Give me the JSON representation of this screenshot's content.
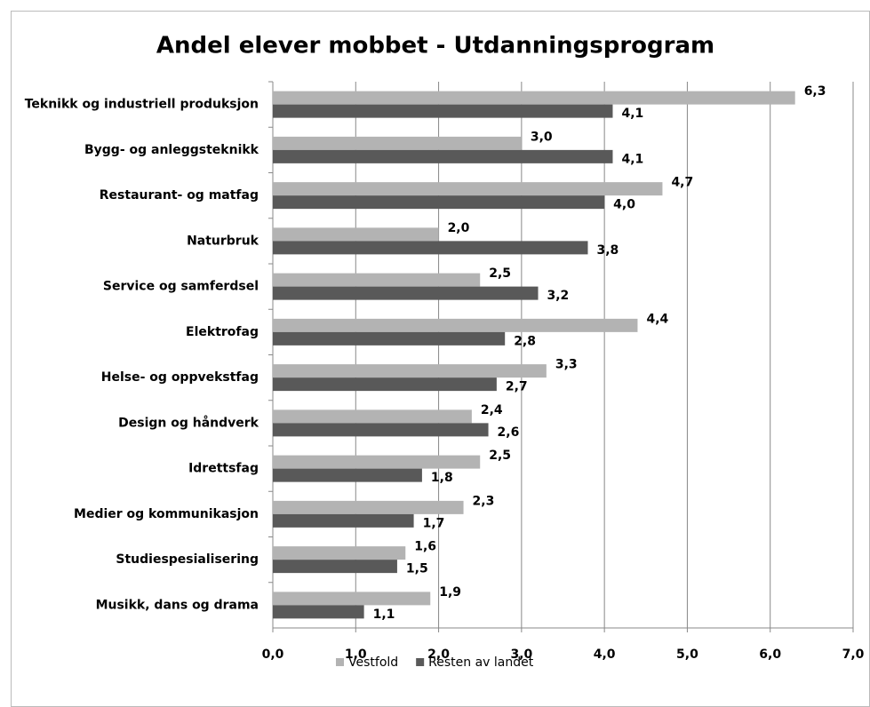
{
  "chart_data": {
    "type": "hbar",
    "title": "Andel  elever mobbet  - Utdanningsprogram",
    "categories": [
      "Teknikk og industriell produksjon",
      "Bygg- og anleggsteknikk",
      "Restaurant- og matfag",
      "Naturbruk",
      "Service og samferdsel",
      "Elektrofag",
      "Helse- og oppvekstfag",
      "Design og håndverk",
      "Idrettsfag",
      "Medier og kommunikasjon",
      "Studiespesialisering",
      "Musikk, dans og drama"
    ],
    "series": [
      {
        "name": "Vestfold",
        "color": "#b3b3b3",
        "values": [
          6.3,
          3.0,
          4.7,
          2.0,
          2.5,
          4.4,
          3.3,
          2.4,
          2.5,
          2.3,
          1.6,
          1.9
        ],
        "value_labels": [
          "6,3",
          "3,0",
          "4,7",
          "2,0",
          "2,5",
          "4,4",
          "3,3",
          "2,4",
          "2,5",
          "2,3",
          "1,6",
          "1,9"
        ]
      },
      {
        "name": "Resten av landet",
        "color": "#595959",
        "values": [
          4.1,
          4.1,
          4.0,
          3.8,
          3.2,
          2.8,
          2.7,
          2.6,
          1.8,
          1.7,
          1.5,
          1.1
        ],
        "value_labels": [
          "4,1",
          "4,1",
          "4,0",
          "3,8",
          "3,2",
          "2,8",
          "2,7",
          "2,6",
          "1,8",
          "1,7",
          "1,5",
          "1,1"
        ]
      }
    ],
    "xlim": [
      0,
      7
    ],
    "xticks": [
      {
        "value": 0,
        "label": "0,0"
      },
      {
        "value": 1,
        "label": "1,0"
      },
      {
        "value": 2,
        "label": "2,0"
      },
      {
        "value": 3,
        "label": "3,0"
      },
      {
        "value": 4,
        "label": "4,0"
      },
      {
        "value": 5,
        "label": "5,0"
      },
      {
        "value": 6,
        "label": "6,0"
      },
      {
        "value": 7,
        "label": "7,0"
      }
    ],
    "grid": true,
    "legend": "bottom"
  }
}
